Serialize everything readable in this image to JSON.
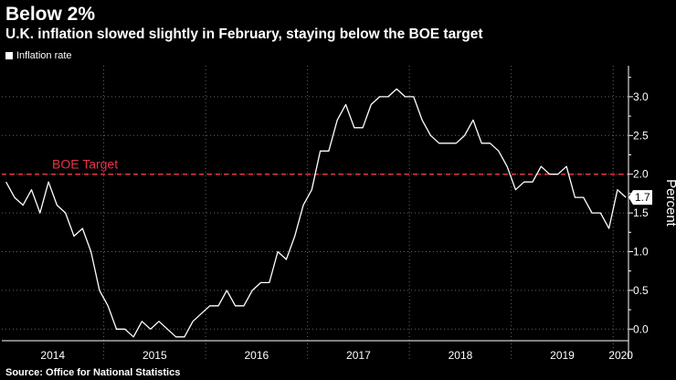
{
  "chart_data": {
    "type": "line",
    "title": "Below 2%",
    "subtitle": "U.K. inflation slowed slightly in February, staying below the BOE target",
    "source": "Source: Office for National Statistics",
    "ylabel": "Percent",
    "ylim": [
      -0.15,
      3.4
    ],
    "yticks": [
      "3.0",
      "2.5",
      "2.0",
      "1.5",
      "1.0",
      "0.5",
      "0.0"
    ],
    "ytick_values": [
      3.0,
      2.5,
      2.0,
      1.5,
      1.0,
      0.5,
      0.0
    ],
    "xtick_labels": [
      "2014",
      "2015",
      "2016",
      "2017",
      "2018",
      "2019",
      "2020"
    ],
    "year_starts": [
      2014,
      2015,
      2016,
      2017,
      2018,
      2019,
      2020
    ],
    "x_start": 2014.0,
    "x_end": 2020.15,
    "series": [
      {
        "name": "Inflation rate",
        "color": "#ffffff",
        "start": "2014-01",
        "values": [
          1.9,
          1.7,
          1.6,
          1.8,
          1.5,
          1.9,
          1.6,
          1.5,
          1.2,
          1.3,
          1.0,
          0.5,
          0.3,
          0.0,
          0.0,
          -0.1,
          0.1,
          0.0,
          0.1,
          0.0,
          -0.1,
          -0.1,
          0.1,
          0.2,
          0.3,
          0.3,
          0.5,
          0.3,
          0.3,
          0.5,
          0.6,
          0.6,
          1.0,
          0.9,
          1.2,
          1.6,
          1.8,
          2.3,
          2.3,
          2.7,
          2.9,
          2.6,
          2.6,
          2.9,
          3.0,
          3.0,
          3.1,
          3.0,
          3.0,
          2.7,
          2.5,
          2.4,
          2.4,
          2.4,
          2.5,
          2.7,
          2.4,
          2.4,
          2.3,
          2.1,
          1.8,
          1.9,
          1.9,
          2.1,
          2.0,
          2.0,
          2.1,
          1.7,
          1.7,
          1.5,
          1.5,
          1.3,
          1.8,
          1.7
        ]
      }
    ],
    "reference_line": {
      "value": 2.0,
      "label": "BOE Target",
      "color": "#e8334a"
    },
    "last_value_label": "1.7",
    "legend": {
      "entries": [
        "Inflation rate"
      ],
      "position": "top-left"
    },
    "grid": true
  }
}
